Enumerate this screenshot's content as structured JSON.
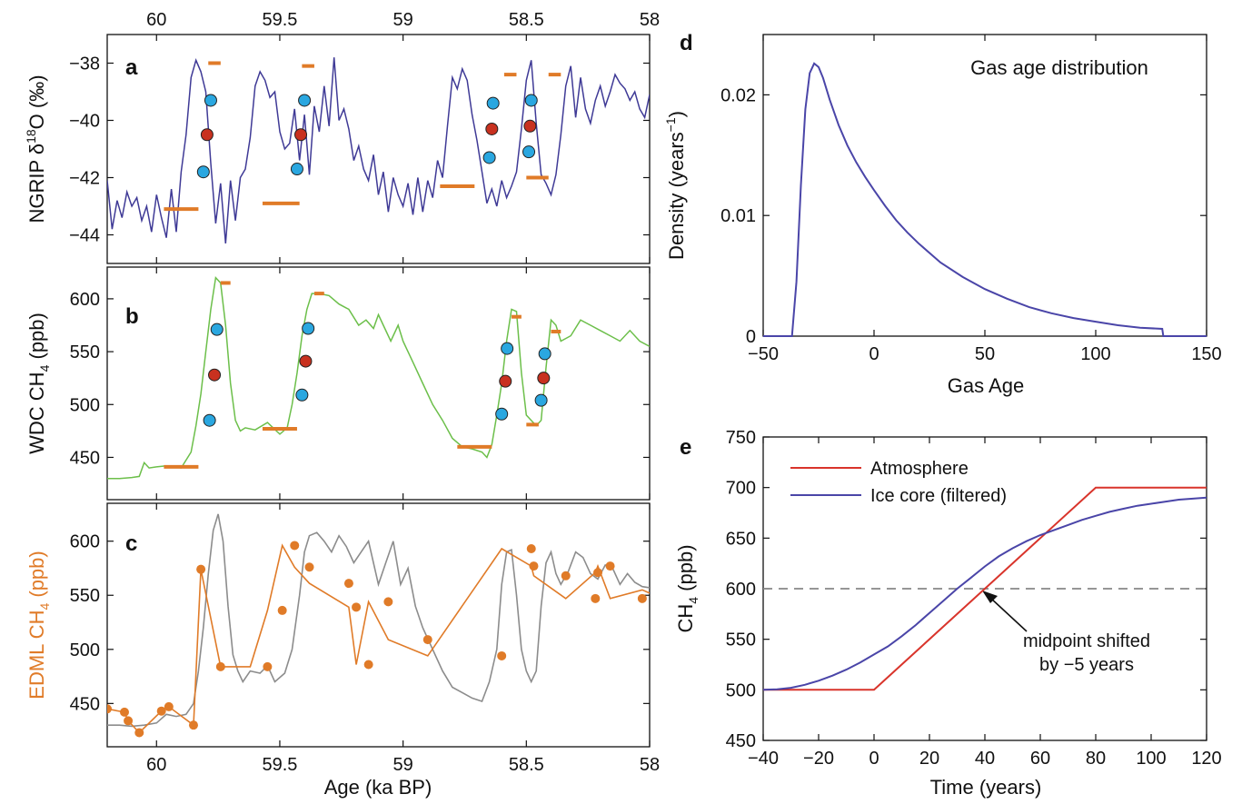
{
  "colors": {
    "d18o": "#3f3a96",
    "wdc": "#6cbf4a",
    "edml": "#e07b28",
    "grey": "#8c8c8c",
    "bar": "#e07b28",
    "cyan": "#2aa7e0",
    "red": "#c8311f",
    "atm": "#d9342b",
    "ice": "#4a45a8",
    "dash": "#888888"
  },
  "shared_axis": {
    "top_ticks": [
      "60",
      "59.5",
      "59",
      "58.5",
      "58"
    ],
    "bottom_ticks": [
      "60",
      "59.5",
      "59",
      "58.5",
      "58"
    ],
    "xlabel": "Age (ka BP)"
  },
  "chart_data": [
    {
      "panel": "a",
      "type": "line",
      "ylabel_main": "NGRIP  δ",
      "ylabel_sup": "18",
      "ylabel_tail": "O (‰)",
      "xlim": [
        60.2,
        58
      ],
      "ylim": [
        -45,
        -37
      ],
      "reversed_x": true,
      "yticks": [
        -44,
        -42,
        -40,
        -38
      ],
      "ytick_labels": [
        "−44",
        "−42",
        "−40",
        "−38"
      ],
      "x": [
        60.2,
        60.18,
        60.16,
        60.14,
        60.12,
        60.1,
        60.08,
        60.06,
        60.04,
        60.02,
        60.0,
        59.98,
        59.96,
        59.94,
        59.92,
        59.9,
        59.88,
        59.86,
        59.84,
        59.82,
        59.8,
        59.78,
        59.76,
        59.74,
        59.72,
        59.7,
        59.68,
        59.66,
        59.64,
        59.62,
        59.6,
        59.58,
        59.56,
        59.54,
        59.52,
        59.5,
        59.48,
        59.46,
        59.44,
        59.42,
        59.4,
        59.38,
        59.36,
        59.34,
        59.32,
        59.3,
        59.28,
        59.26,
        59.24,
        59.22,
        59.2,
        59.18,
        59.16,
        59.14,
        59.12,
        59.1,
        59.08,
        59.06,
        59.04,
        59.02,
        59.0,
        58.98,
        58.96,
        58.94,
        58.92,
        58.9,
        58.88,
        58.86,
        58.84,
        58.82,
        58.8,
        58.78,
        58.76,
        58.74,
        58.72,
        58.7,
        58.68,
        58.66,
        58.64,
        58.62,
        58.6,
        58.58,
        58.56,
        58.54,
        58.52,
        58.5,
        58.48,
        58.46,
        58.44,
        58.42,
        58.4,
        58.38,
        58.36,
        58.34,
        58.32,
        58.3,
        58.28,
        58.26,
        58.24,
        58.22,
        58.2,
        58.18,
        58.16,
        58.14,
        58.12,
        58.1,
        58.08,
        58.06,
        58.04,
        58.02,
        58.0
      ],
      "y": [
        -42.1,
        -43.8,
        -42.8,
        -43.4,
        -42.5,
        -43.0,
        -42.7,
        -43.5,
        -43.0,
        -43.9,
        -42.6,
        -43.4,
        -44.1,
        -42.4,
        -43.9,
        -41.8,
        -40.5,
        -38.5,
        -37.9,
        -38.3,
        -39.0,
        -41.5,
        -43.6,
        -42.2,
        -44.3,
        -42.1,
        -43.5,
        -42.0,
        -41.7,
        -40.6,
        -38.8,
        -38.3,
        -38.6,
        -39.2,
        -39.0,
        -40.4,
        -41.0,
        -40.8,
        -39.6,
        -41.4,
        -39.8,
        -41.9,
        -39.5,
        -40.4,
        -38.8,
        -40.2,
        -37.8,
        -40.0,
        -39.6,
        -40.3,
        -41.4,
        -40.9,
        -41.7,
        -42.1,
        -41.2,
        -42.6,
        -41.8,
        -43.2,
        -42.0,
        -42.6,
        -43.0,
        -42.2,
        -43.3,
        -42.0,
        -43.2,
        -42.1,
        -42.7,
        -41.4,
        -42.0,
        -40.2,
        -38.5,
        -38.9,
        -38.2,
        -38.6,
        -39.8,
        -40.7,
        -41.8,
        -42.9,
        -42.4,
        -43.0,
        -42.1,
        -42.7,
        -42.3,
        -41.8,
        -40.3,
        -38.6,
        -37.9,
        -40.1,
        -41.9,
        -42.2,
        -42.6,
        -41.9,
        -40.5,
        -38.8,
        -38.1,
        -39.9,
        -38.5,
        -39.6,
        -40.1,
        -39.3,
        -38.8,
        -39.5,
        -39.0,
        -38.4,
        -38.7,
        -38.9,
        -39.3,
        -39.0,
        -39.6,
        -39.9,
        -39.1
      ],
      "bars": [
        {
          "x1": 59.97,
          "x2": 59.83,
          "y": -43.1
        },
        {
          "x1": 59.79,
          "x2": 59.74,
          "y": -38.0
        },
        {
          "x1": 59.57,
          "x2": 59.42,
          "y": -42.9
        },
        {
          "x1": 59.41,
          "x2": 59.36,
          "y": -38.1
        },
        {
          "x1": 58.85,
          "x2": 58.71,
          "y": -42.3
        },
        {
          "x1": 58.59,
          "x2": 58.54,
          "y": -38.4
        },
        {
          "x1": 58.5,
          "x2": 58.41,
          "y": -42.0
        },
        {
          "x1": 58.41,
          "x2": 58.36,
          "y": -38.4
        }
      ],
      "points": [
        {
          "x": 59.81,
          "y": -41.8,
          "c": "cyan"
        },
        {
          "x": 59.795,
          "y": -40.5,
          "c": "red"
        },
        {
          "x": 59.78,
          "y": -39.3,
          "c": "cyan"
        },
        {
          "x": 59.43,
          "y": -41.7,
          "c": "cyan"
        },
        {
          "x": 59.415,
          "y": -40.5,
          "c": "red"
        },
        {
          "x": 59.4,
          "y": -39.3,
          "c": "cyan"
        },
        {
          "x": 58.65,
          "y": -41.3,
          "c": "cyan"
        },
        {
          "x": 58.64,
          "y": -40.3,
          "c": "red"
        },
        {
          "x": 58.635,
          "y": -39.4,
          "c": "cyan"
        },
        {
          "x": 58.49,
          "y": -41.1,
          "c": "cyan"
        },
        {
          "x": 58.485,
          "y": -40.2,
          "c": "red"
        },
        {
          "x": 58.48,
          "y": -39.3,
          "c": "cyan"
        }
      ]
    },
    {
      "panel": "b",
      "type": "line",
      "ylabel_main": "WDC CH",
      "ylabel_sub": "4",
      "ylabel_tail": " (ppb)",
      "xlim": [
        60.2,
        58
      ],
      "ylim": [
        410,
        630
      ],
      "reversed_x": true,
      "yticks": [
        450,
        500,
        550,
        600
      ],
      "ytick_labels": [
        "450",
        "500",
        "550",
        "600"
      ],
      "x": [
        60.2,
        60.15,
        60.1,
        60.07,
        60.05,
        60.03,
        60.0,
        59.96,
        59.9,
        59.86,
        59.84,
        59.82,
        59.8,
        59.78,
        59.76,
        59.74,
        59.72,
        59.7,
        59.68,
        59.66,
        59.64,
        59.6,
        59.55,
        59.5,
        59.47,
        59.45,
        59.43,
        59.41,
        59.39,
        59.37,
        59.34,
        59.3,
        59.26,
        59.22,
        59.18,
        59.15,
        59.12,
        59.1,
        59.08,
        59.05,
        59.02,
        59.0,
        58.96,
        58.92,
        58.88,
        58.84,
        58.8,
        58.76,
        58.72,
        58.68,
        58.66,
        58.64,
        58.62,
        58.6,
        58.58,
        58.56,
        58.54,
        58.52,
        58.5,
        58.48,
        58.46,
        58.44,
        58.42,
        58.4,
        58.38,
        58.36,
        58.32,
        58.28,
        58.24,
        58.2,
        58.16,
        58.12,
        58.08,
        58.04,
        58.0
      ],
      "y": [
        430,
        430,
        431,
        432,
        445,
        440,
        441,
        442,
        440,
        455,
        480,
        510,
        550,
        590,
        620,
        615,
        575,
        520,
        485,
        475,
        478,
        476,
        483,
        472,
        478,
        500,
        530,
        565,
        590,
        605,
        605,
        603,
        595,
        590,
        575,
        580,
        572,
        585,
        575,
        560,
        575,
        560,
        540,
        520,
        500,
        485,
        468,
        460,
        458,
        455,
        450,
        462,
        490,
        520,
        560,
        590,
        588,
        530,
        490,
        485,
        480,
        485,
        535,
        580,
        575,
        560,
        565,
        580,
        575,
        570,
        565,
        560,
        570,
        560,
        555
      ],
      "bars": [
        {
          "x1": 59.97,
          "x2": 59.83,
          "y": 441
        },
        {
          "x1": 59.74,
          "x2": 59.7,
          "y": 615
        },
        {
          "x1": 59.57,
          "x2": 59.43,
          "y": 477
        },
        {
          "x1": 59.36,
          "x2": 59.32,
          "y": 605
        },
        {
          "x1": 58.78,
          "x2": 58.64,
          "y": 460
        },
        {
          "x1": 58.56,
          "x2": 58.52,
          "y": 583
        },
        {
          "x1": 58.5,
          "x2": 58.45,
          "y": 481
        },
        {
          "x1": 58.4,
          "x2": 58.36,
          "y": 569
        }
      ],
      "points": [
        {
          "x": 59.785,
          "y": 485,
          "c": "cyan"
        },
        {
          "x": 59.765,
          "y": 528,
          "c": "red"
        },
        {
          "x": 59.755,
          "y": 571,
          "c": "cyan"
        },
        {
          "x": 59.41,
          "y": 509,
          "c": "cyan"
        },
        {
          "x": 59.395,
          "y": 541,
          "c": "red"
        },
        {
          "x": 59.385,
          "y": 572,
          "c": "cyan"
        },
        {
          "x": 58.6,
          "y": 491,
          "c": "cyan"
        },
        {
          "x": 58.585,
          "y": 522,
          "c": "red"
        },
        {
          "x": 58.578,
          "y": 553,
          "c": "cyan"
        },
        {
          "x": 58.44,
          "y": 504,
          "c": "cyan"
        },
        {
          "x": 58.43,
          "y": 525,
          "c": "red"
        },
        {
          "x": 58.425,
          "y": 548,
          "c": "cyan"
        }
      ]
    },
    {
      "panel": "c",
      "type": "line",
      "ylabel_main": "EDML CH",
      "ylabel_sub": "4",
      "ylabel_tail": " (ppb)",
      "xlim": [
        60.2,
        58
      ],
      "ylim": [
        410,
        635
      ],
      "reversed_x": true,
      "yticks": [
        450,
        500,
        550,
        600
      ],
      "ytick_labels": [
        "450",
        "500",
        "550",
        "600"
      ],
      "grey_x": [
        60.2,
        60.15,
        60.1,
        60.05,
        60.0,
        59.96,
        59.92,
        59.88,
        59.85,
        59.83,
        59.81,
        59.79,
        59.77,
        59.75,
        59.73,
        59.71,
        59.69,
        59.67,
        59.65,
        59.62,
        59.58,
        59.55,
        59.52,
        59.48,
        59.45,
        59.42,
        59.4,
        59.38,
        59.35,
        59.32,
        59.29,
        59.26,
        59.23,
        59.2,
        59.17,
        59.14,
        59.1,
        59.07,
        59.04,
        59.01,
        58.98,
        58.95,
        58.92,
        58.88,
        58.84,
        58.8,
        58.76,
        58.72,
        58.68,
        58.65,
        58.62,
        58.6,
        58.58,
        58.56,
        58.54,
        58.52,
        58.5,
        58.48,
        58.46,
        58.44,
        58.42,
        58.4,
        58.38,
        58.36,
        58.33,
        58.3,
        58.27,
        58.24,
        58.21,
        58.18,
        58.15,
        58.12,
        58.09,
        58.06,
        58.03,
        58.0
      ],
      "grey_y": [
        430,
        430,
        429,
        430,
        432,
        440,
        438,
        440,
        450,
        480,
        520,
        570,
        610,
        625,
        600,
        540,
        495,
        480,
        470,
        480,
        478,
        485,
        470,
        478,
        500,
        550,
        590,
        605,
        608,
        600,
        590,
        605,
        595,
        580,
        590,
        600,
        560,
        580,
        600,
        560,
        575,
        540,
        520,
        500,
        480,
        465,
        460,
        455,
        452,
        470,
        500,
        560,
        590,
        592,
        550,
        500,
        480,
        470,
        480,
        540,
        580,
        590,
        570,
        560,
        572,
        590,
        585,
        570,
        565,
        578,
        575,
        560,
        570,
        562,
        558,
        557
      ],
      "orange_x": [
        60.2,
        60.13,
        60.115,
        60.07,
        59.98,
        59.95,
        59.85,
        59.82,
        59.74,
        59.55,
        59.49,
        59.44,
        59.38,
        59.22,
        59.19,
        59.14,
        59.06,
        58.9,
        58.6,
        58.48,
        58.47,
        58.34,
        58.22,
        58.21,
        58.16,
        58.03
      ],
      "orange_y": [
        445,
        442,
        434,
        423,
        443,
        447,
        430,
        574,
        484,
        484,
        536,
        596,
        576,
        561,
        539,
        486,
        544,
        509,
        494,
        593,
        577,
        568,
        547,
        571,
        577,
        547
      ],
      "plot_x": [
        60.2,
        60.13,
        60.115,
        60.07,
        59.98,
        59.95,
        59.85,
        59.82,
        59.74,
        59.62,
        59.55,
        59.49,
        59.44,
        59.38,
        59.22,
        59.19,
        59.14,
        59.06,
        58.9,
        58.6,
        58.48,
        58.47,
        58.34,
        58.22,
        58.21,
        58.16,
        58.03,
        58.0
      ],
      "plot_y": [
        445,
        442,
        434,
        423,
        443,
        447,
        430,
        574,
        484,
        484,
        536,
        596,
        576,
        561,
        539,
        486,
        544,
        509,
        494,
        593,
        577,
        568,
        547,
        571,
        577,
        547,
        555,
        552
      ]
    },
    {
      "panel": "d",
      "type": "line",
      "title": "Gas age distribution",
      "xlabel": "Gas Age",
      "ylabel_main": "Density (years",
      "ylabel_sup": "−1",
      "ylabel_tail": ")",
      "xlim": [
        -50,
        150
      ],
      "ylim": [
        0,
        0.025
      ],
      "xticks": [
        -50,
        0,
        50,
        100,
        150
      ],
      "xtick_labels": [
        "−50",
        "0",
        "50",
        "100",
        "150"
      ],
      "yticks": [
        0,
        0.01,
        0.02
      ],
      "ytick_labels": [
        "0",
        "0.01",
        "0.02"
      ],
      "x": [
        -50,
        -37,
        -35,
        -33,
        -31,
        -29,
        -27,
        -25,
        -23,
        -20,
        -16,
        -12,
        -8,
        -4,
        0,
        5,
        10,
        15,
        20,
        25,
        30,
        40,
        50,
        60,
        70,
        80,
        90,
        100,
        110,
        120,
        130,
        130.5,
        150
      ],
      "y": [
        0,
        0,
        0.0045,
        0.0125,
        0.0188,
        0.0218,
        0.0226,
        0.0223,
        0.0214,
        0.0196,
        0.0175,
        0.0158,
        0.0144,
        0.0132,
        0.0121,
        0.0108,
        0.0096,
        0.0086,
        0.0077,
        0.0069,
        0.0061,
        0.0049,
        0.0039,
        0.0031,
        0.0024,
        0.0019,
        0.0015,
        0.0012,
        0.0009,
        0.0007,
        0.0006,
        0,
        0
      ]
    },
    {
      "panel": "e",
      "type": "line",
      "xlabel": "Time (years)",
      "ylabel_main": "CH",
      "ylabel_sub": "4",
      "ylabel_tail": " (ppb)",
      "xlim": [
        -40,
        120
      ],
      "ylim": [
        450,
        750
      ],
      "xticks": [
        -40,
        -20,
        0,
        20,
        40,
        60,
        80,
        100,
        120
      ],
      "xtick_labels": [
        "−40",
        "−20",
        "0",
        "20",
        "40",
        "60",
        "80",
        "100",
        "120"
      ],
      "yticks": [
        450,
        500,
        550,
        600,
        650,
        700,
        750
      ],
      "ytick_labels": [
        "450",
        "500",
        "550",
        "600",
        "650",
        "700",
        "750"
      ],
      "series": [
        {
          "name": "Atmosphere",
          "x": [
            -40,
            0,
            80,
            120
          ],
          "y": [
            500,
            500,
            700,
            700
          ]
        },
        {
          "name": "Ice core (filtered)",
          "x": [
            -40,
            -35,
            -30,
            -25,
            -20,
            -15,
            -10,
            -5,
            0,
            5,
            10,
            15,
            20,
            25,
            30,
            35,
            40,
            45,
            50,
            55,
            60,
            65,
            70,
            75,
            80,
            85,
            90,
            95,
            100,
            105,
            110,
            115,
            120
          ],
          "y": [
            500,
            500.5,
            502,
            505,
            509,
            514,
            520,
            527,
            535,
            543,
            553,
            564,
            576,
            588,
            600,
            611,
            622,
            632,
            640,
            647,
            653,
            658,
            663,
            668,
            672,
            676,
            679,
            682,
            684,
            686,
            688,
            689,
            690
          ]
        }
      ],
      "hline": 600,
      "annotation_line1": "midpoint shifted",
      "annotation_line2": "by −5 years"
    }
  ],
  "panel_letters": {
    "a": "a",
    "b": "b",
    "c": "c",
    "d": "d",
    "e": "e"
  }
}
